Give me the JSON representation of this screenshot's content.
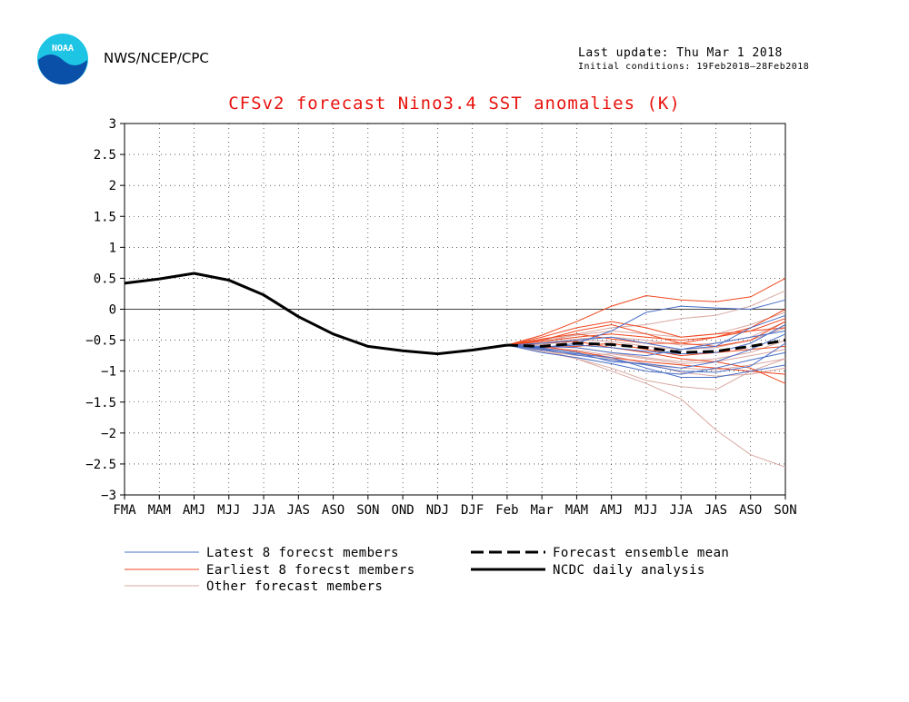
{
  "header": {
    "agency": "NWS/NCEP/CPC",
    "last_update": "Last update: Thu Mar  1 2018",
    "initial_conditions": "Initial conditions: 19Feb2018–28Feb2018",
    "logo_text": "NOAA"
  },
  "colors": {
    "title": "#e8130e",
    "latest": "#4a6fc7",
    "earliest": "#f0471f",
    "other": "#d9a8a2",
    "analysis": "#000000"
  },
  "chart_data": {
    "type": "line",
    "title": "CFSv2 forecast Nino3.4 SST anomalies (K)",
    "xlabel": "",
    "ylabel": "",
    "ylim": [
      -3,
      3
    ],
    "categories": [
      "FMA",
      "MAM",
      "AMJ",
      "MJJ",
      "JJA",
      "JAS",
      "ASO",
      "SON",
      "OND",
      "NDJ",
      "DJF",
      "Feb",
      "Mar",
      "MAM",
      "AMJ",
      "MJJ",
      "JJA",
      "JAS",
      "ASO",
      "SON"
    ],
    "yticks": [
      "3",
      "2.5",
      "2",
      "1.5",
      "1",
      "0.5",
      "0",
      "−0.5",
      "−1",
      "−1.5",
      "−2",
      "−2.5",
      "−3"
    ],
    "ytick_values": [
      3,
      2.5,
      2,
      1.5,
      1,
      0.5,
      0,
      -0.5,
      -1,
      -1.5,
      -2,
      -2.5,
      -3
    ],
    "analysis": {
      "name": "NCDC daily analysis",
      "values": [
        0.42,
        0.49,
        0.58,
        0.47,
        0.23,
        -0.12,
        -0.4,
        -0.6,
        -0.67,
        -0.72,
        -0.66,
        -0.58
      ]
    },
    "ensemble_mean": {
      "name": "Forecast ensemble mean",
      "values": [
        -0.58,
        -0.6,
        -0.55,
        -0.57,
        -0.62,
        -0.7,
        -0.68,
        -0.6,
        -0.5
      ]
    },
    "forecast_members": [
      {
        "group": "latest",
        "values": [
          -0.58,
          -0.62,
          -0.55,
          -0.35,
          -0.05,
          0.05,
          0.02,
          0.0,
          0.15
        ]
      },
      {
        "group": "latest",
        "values": [
          -0.58,
          -0.66,
          -0.72,
          -0.78,
          -0.95,
          -1.1,
          -1.1,
          -1.0,
          -0.9
        ]
      },
      {
        "group": "latest",
        "values": [
          -0.58,
          -0.63,
          -0.7,
          -0.85,
          -0.88,
          -0.95,
          -0.85,
          -0.65,
          -0.4
        ]
      },
      {
        "group": "latest",
        "values": [
          -0.58,
          -0.6,
          -0.62,
          -0.7,
          -0.75,
          -0.65,
          -0.55,
          -0.45,
          -0.35
        ]
      },
      {
        "group": "latest",
        "values": [
          -0.58,
          -0.7,
          -0.78,
          -0.88,
          -1.0,
          -1.05,
          -0.95,
          -0.82,
          -0.7
        ]
      },
      {
        "group": "latest",
        "values": [
          -0.58,
          -0.55,
          -0.5,
          -0.45,
          -0.55,
          -0.65,
          -0.6,
          -0.3,
          -0.1
        ]
      },
      {
        "group": "latest",
        "values": [
          -0.58,
          -0.64,
          -0.74,
          -0.82,
          -0.9,
          -1.0,
          -1.02,
          -0.92,
          -0.55
        ]
      },
      {
        "group": "latest",
        "values": [
          -0.58,
          -0.61,
          -0.58,
          -0.62,
          -0.68,
          -0.72,
          -0.7,
          -0.55,
          -0.25
        ]
      },
      {
        "group": "earliest",
        "values": [
          -0.58,
          -0.42,
          -0.2,
          0.05,
          0.22,
          0.15,
          0.12,
          0.2,
          0.5
        ]
      },
      {
        "group": "earliest",
        "values": [
          -0.58,
          -0.5,
          -0.35,
          -0.25,
          -0.4,
          -0.55,
          -0.6,
          -0.5,
          -0.2
        ]
      },
      {
        "group": "earliest",
        "values": [
          -0.58,
          -0.55,
          -0.52,
          -0.62,
          -0.7,
          -0.8,
          -0.85,
          -0.95,
          -1.2
        ]
      },
      {
        "group": "earliest",
        "values": [
          -0.58,
          -0.48,
          -0.4,
          -0.48,
          -0.55,
          -0.55,
          -0.45,
          -0.3,
          0.0
        ]
      },
      {
        "group": "earliest",
        "values": [
          -0.58,
          -0.6,
          -0.68,
          -0.78,
          -0.85,
          -0.9,
          -0.95,
          -1.0,
          -1.05
        ]
      },
      {
        "group": "earliest",
        "values": [
          -0.58,
          -0.52,
          -0.45,
          -0.4,
          -0.45,
          -0.5,
          -0.45,
          -0.35,
          -0.15
        ]
      },
      {
        "group": "earliest",
        "values": [
          -0.58,
          -0.62,
          -0.6,
          -0.55,
          -0.65,
          -0.75,
          -0.7,
          -0.65,
          -0.6
        ]
      },
      {
        "group": "earliest",
        "values": [
          -0.58,
          -0.45,
          -0.3,
          -0.2,
          -0.3,
          -0.45,
          -0.4,
          -0.35,
          -0.3
        ]
      },
      {
        "group": "other",
        "values": [
          -0.58,
          -0.65,
          -0.8,
          -1.0,
          -1.2,
          -1.45,
          -1.95,
          -2.35,
          -2.55
        ]
      },
      {
        "group": "other",
        "values": [
          -0.58,
          -0.68,
          -0.8,
          -0.95,
          -1.15,
          -1.25,
          -1.3,
          -1.0,
          -0.8
        ]
      },
      {
        "group": "other",
        "values": [
          -0.58,
          -0.55,
          -0.4,
          -0.3,
          -0.25,
          -0.15,
          -0.1,
          0.05,
          0.3
        ]
      },
      {
        "group": "other",
        "values": [
          -0.58,
          -0.6,
          -0.62,
          -0.7,
          -0.78,
          -0.85,
          -0.8,
          -0.7,
          -0.5
        ]
      },
      {
        "group": "other",
        "values": [
          -0.58,
          -0.57,
          -0.5,
          -0.52,
          -0.6,
          -0.65,
          -0.62,
          -0.5,
          -0.3
        ]
      },
      {
        "group": "other",
        "values": [
          -0.58,
          -0.62,
          -0.7,
          -0.8,
          -0.9,
          -0.95,
          -0.98,
          -0.9,
          -0.8
        ]
      },
      {
        "group": "other",
        "values": [
          -0.58,
          -0.5,
          -0.42,
          -0.35,
          -0.4,
          -0.45,
          -0.4,
          -0.25,
          -0.05
        ]
      },
      {
        "group": "other",
        "values": [
          -0.58,
          -0.66,
          -0.75,
          -0.72,
          -0.8,
          -0.88,
          -0.85,
          -0.75,
          -0.65
        ]
      },
      {
        "group": "other",
        "values": [
          -0.58,
          -0.54,
          -0.48,
          -0.45,
          -0.5,
          -0.58,
          -0.55,
          -0.45,
          -0.2
        ]
      },
      {
        "group": "other",
        "values": [
          -0.58,
          -0.63,
          -0.66,
          -0.75,
          -0.88,
          -1.02,
          -1.08,
          -1.05,
          -0.95
        ]
      }
    ],
    "legend": [
      {
        "key": "latest",
        "label": "Latest 8 forecst members",
        "style": "thin-blue"
      },
      {
        "key": "earliest",
        "label": "Earliest 8 forecst members",
        "style": "thin-red"
      },
      {
        "key": "other",
        "label": "Other forecast members",
        "style": "thin-pink"
      },
      {
        "key": "mean",
        "label": "Forecast ensemble mean",
        "style": "dashed-black"
      },
      {
        "key": "analysis",
        "label": "NCDC daily analysis",
        "style": "solid-black"
      }
    ]
  }
}
